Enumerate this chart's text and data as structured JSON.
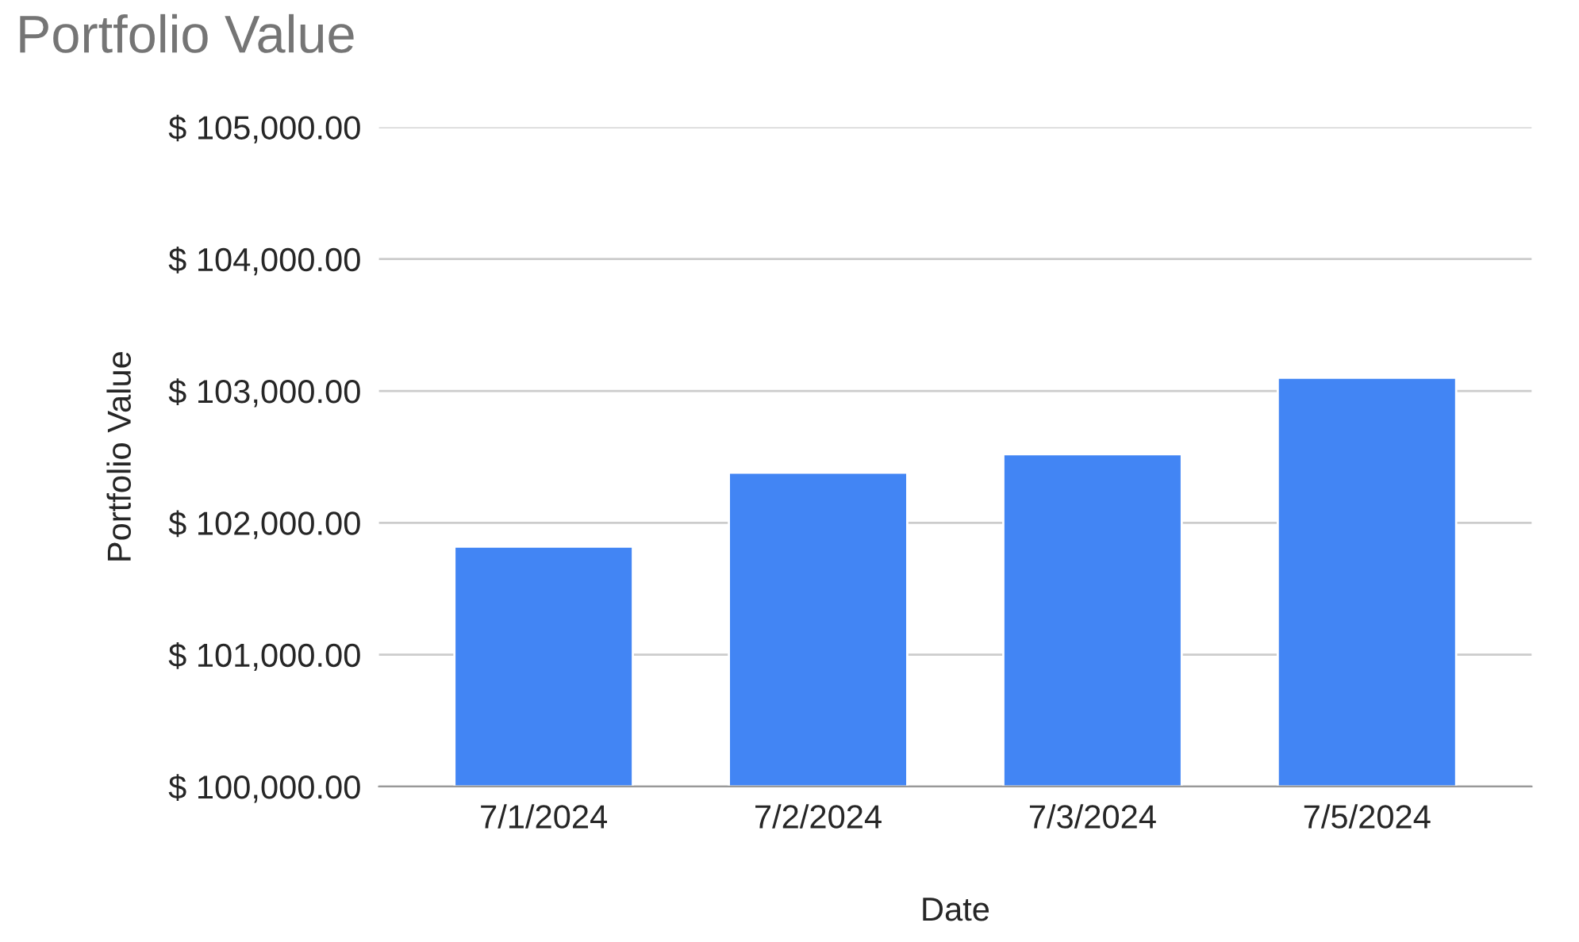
{
  "chart_data": {
    "type": "bar",
    "title": "Portfolio Value",
    "xlabel": "Date",
    "ylabel": "Portfolio Value",
    "categories": [
      "7/1/2024",
      "7/2/2024",
      "7/3/2024",
      "7/5/2024"
    ],
    "values": [
      101820,
      102380,
      102520,
      103100
    ],
    "color": "#4285f4",
    "ylim": [
      100000,
      105000
    ],
    "yticks": [
      {
        "value": 100000,
        "label": "$ 100,000.00"
      },
      {
        "value": 101000,
        "label": "$ 101,000.00"
      },
      {
        "value": 102000,
        "label": "$ 102,000.00"
      },
      {
        "value": 103000,
        "label": "$ 103,000.00"
      },
      {
        "value": 104000,
        "label": "$ 104,000.00"
      },
      {
        "value": 105000,
        "label": "$ 105,000.00"
      }
    ],
    "grid": "y",
    "legend": false
  }
}
